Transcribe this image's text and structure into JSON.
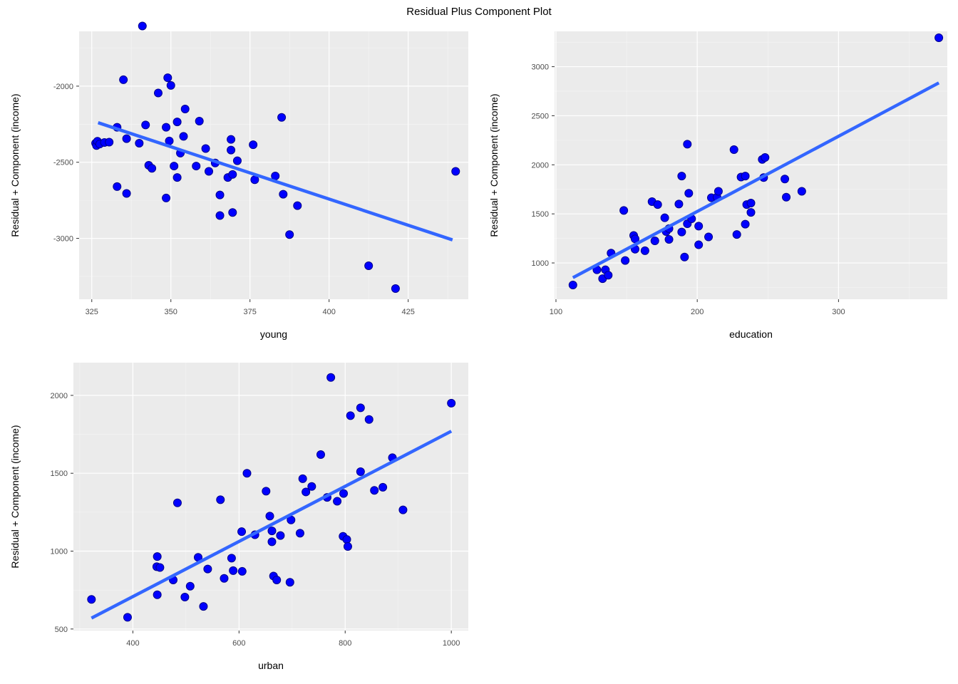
{
  "title": "Residual Plus Component Plot",
  "colors": {
    "panel_bg": "#EBEBEB",
    "grid_major": "#FFFFFF",
    "point": "#0000FF",
    "point_edge": "#00008B",
    "line": "#3366FF"
  },
  "chart_data": [
    {
      "type": "scatter",
      "xlabel": "young",
      "ylabel": "Residual + Component (income)",
      "xlim": [
        321,
        444
      ],
      "ylim": [
        -3400,
        -1640
      ],
      "xticks": [
        325,
        350,
        375,
        400,
        425
      ],
      "yticks": [
        -3000,
        -2500,
        -2000
      ],
      "xtick_labels": [
        "325",
        "350",
        "375",
        "400",
        "425"
      ],
      "ytick_labels": [
        "-3000",
        "-2500",
        "-2000"
      ],
      "fit_line": {
        "x": [
          327,
          439
        ],
        "y": [
          -2240,
          -3010
        ]
      },
      "points": [
        [
          326.2,
          -2375
        ],
        [
          326.5,
          -2390
        ],
        [
          326.8,
          -2362
        ],
        [
          327.5,
          -2380
        ],
        [
          329,
          -2370
        ],
        [
          330.5,
          -2368
        ],
        [
          333,
          -2270
        ],
        [
          333,
          -2660
        ],
        [
          335,
          -1958
        ],
        [
          336,
          -2345
        ],
        [
          336,
          -2705
        ],
        [
          340,
          -2375
        ],
        [
          341,
          -1605
        ],
        [
          342,
          -2255
        ],
        [
          343,
          -2520
        ],
        [
          344,
          -2540
        ],
        [
          346,
          -2045
        ],
        [
          348.5,
          -2270
        ],
        [
          348.5,
          -2735
        ],
        [
          349,
          -1945
        ],
        [
          349.5,
          -2360
        ],
        [
          350,
          -1995
        ],
        [
          351,
          -2525
        ],
        [
          352,
          -2600
        ],
        [
          352,
          -2235
        ],
        [
          353,
          -2440
        ],
        [
          354,
          -2330
        ],
        [
          354.5,
          -2150
        ],
        [
          358,
          -2525
        ],
        [
          359,
          -2230
        ],
        [
          361,
          -2410
        ],
        [
          362,
          -2560
        ],
        [
          364,
          -2505
        ],
        [
          365.5,
          -2715
        ],
        [
          365.5,
          -2850
        ],
        [
          368,
          -2600
        ],
        [
          369,
          -2350
        ],
        [
          369,
          -2420
        ],
        [
          369.5,
          -2830
        ],
        [
          369.5,
          -2580
        ],
        [
          371,
          -2490
        ],
        [
          376,
          -2385
        ],
        [
          376.5,
          -2615
        ],
        [
          383,
          -2590
        ],
        [
          385,
          -2205
        ],
        [
          385.5,
          -2710
        ],
        [
          387.5,
          -2975
        ],
        [
          390,
          -2785
        ],
        [
          412.5,
          -3180
        ],
        [
          421,
          -3330
        ],
        [
          440,
          -2560
        ]
      ]
    },
    {
      "type": "scatter",
      "xlabel": "education",
      "ylabel": "Residual + Component (income)",
      "xlim": [
        99,
        377
      ],
      "ylim": [
        630,
        3360
      ],
      "xticks": [
        100,
        200,
        300
      ],
      "yticks": [
        1000,
        1500,
        2000,
        2500,
        3000
      ],
      "xtick_labels": [
        "100",
        "200",
        "300"
      ],
      "ytick_labels": [
        "1000",
        "1500",
        "2000",
        "2500",
        "3000"
      ],
      "fit_line": {
        "x": [
          112,
          371
        ],
        "y": [
          850,
          2835
        ]
      },
      "points": [
        [
          112,
          775
        ],
        [
          129,
          930
        ],
        [
          133,
          840
        ],
        [
          135,
          930
        ],
        [
          137,
          875
        ],
        [
          139,
          1100
        ],
        [
          148,
          1535
        ],
        [
          149,
          1025
        ],
        [
          155,
          1280
        ],
        [
          156,
          1245
        ],
        [
          156,
          1140
        ],
        [
          163,
          1125
        ],
        [
          168,
          1625
        ],
        [
          170,
          1225
        ],
        [
          172,
          1595
        ],
        [
          177,
          1460
        ],
        [
          178,
          1320
        ],
        [
          180,
          1240
        ],
        [
          180,
          1350
        ],
        [
          187,
          1600
        ],
        [
          189,
          1885
        ],
        [
          189,
          1315
        ],
        [
          191,
          1060
        ],
        [
          193,
          2210
        ],
        [
          193,
          1400
        ],
        [
          194,
          1710
        ],
        [
          196,
          1450
        ],
        [
          201,
          1185
        ],
        [
          201,
          1375
        ],
        [
          208,
          1265
        ],
        [
          210,
          1665
        ],
        [
          214,
          1670
        ],
        [
          215,
          1730
        ],
        [
          226,
          2155
        ],
        [
          228,
          1290
        ],
        [
          231,
          1875
        ],
        [
          234,
          1885
        ],
        [
          235,
          1595
        ],
        [
          234,
          1395
        ],
        [
          238,
          1610
        ],
        [
          238,
          1515
        ],
        [
          246,
          2055
        ],
        [
          247,
          1870
        ],
        [
          248,
          2075
        ],
        [
          262,
          1855
        ],
        [
          263,
          1670
        ],
        [
          274,
          1730
        ],
        [
          371,
          3295
        ]
      ]
    },
    {
      "type": "scatter",
      "xlabel": "urban",
      "ylabel": "Residual + Component (income)",
      "xlim": [
        288,
        1032
      ],
      "ylim": [
        490,
        2210
      ],
      "xticks": [
        400,
        600,
        800,
        1000
      ],
      "yticks": [
        500,
        1000,
        1500,
        2000
      ],
      "xtick_labels": [
        "400",
        "600",
        "800",
        "1000"
      ],
      "ytick_labels": [
        "500",
        "1000",
        "1500",
        "2000"
      ],
      "fit_line": {
        "x": [
          322,
          1000
        ],
        "y": [
          570,
          1770
        ]
      },
      "points": [
        [
          322,
          690
        ],
        [
          390,
          575
        ],
        [
          445,
          900
        ],
        [
          446,
          965
        ],
        [
          446,
          720
        ],
        [
          451,
          895
        ],
        [
          476,
          815
        ],
        [
          484,
          1310
        ],
        [
          498,
          705
        ],
        [
          508,
          775
        ],
        [
          523,
          960
        ],
        [
          533,
          645
        ],
        [
          541,
          885
        ],
        [
          565,
          1330
        ],
        [
          572,
          825
        ],
        [
          586,
          955
        ],
        [
          589,
          875
        ],
        [
          605,
          1125
        ],
        [
          606,
          870
        ],
        [
          615,
          1500
        ],
        [
          630,
          1105
        ],
        [
          651,
          1385
        ],
        [
          658,
          1225
        ],
        [
          662,
          1060
        ],
        [
          662,
          1130
        ],
        [
          665,
          840
        ],
        [
          671,
          815
        ],
        [
          678,
          1100
        ],
        [
          696,
          800
        ],
        [
          698,
          1200
        ],
        [
          715,
          1115
        ],
        [
          720,
          1465
        ],
        [
          726,
          1380
        ],
        [
          737,
          1415
        ],
        [
          754,
          1620
        ],
        [
          766,
          1345
        ],
        [
          773,
          2115
        ],
        [
          785,
          1320
        ],
        [
          796,
          1095
        ],
        [
          797,
          1370
        ],
        [
          803,
          1075
        ],
        [
          805,
          1030
        ],
        [
          810,
          1870
        ],
        [
          829,
          1920
        ],
        [
          829,
          1510
        ],
        [
          845,
          1845
        ],
        [
          855,
          1390
        ],
        [
          871,
          1410
        ],
        [
          889,
          1600
        ],
        [
          909,
          1265
        ],
        [
          1000,
          1950
        ]
      ]
    }
  ]
}
